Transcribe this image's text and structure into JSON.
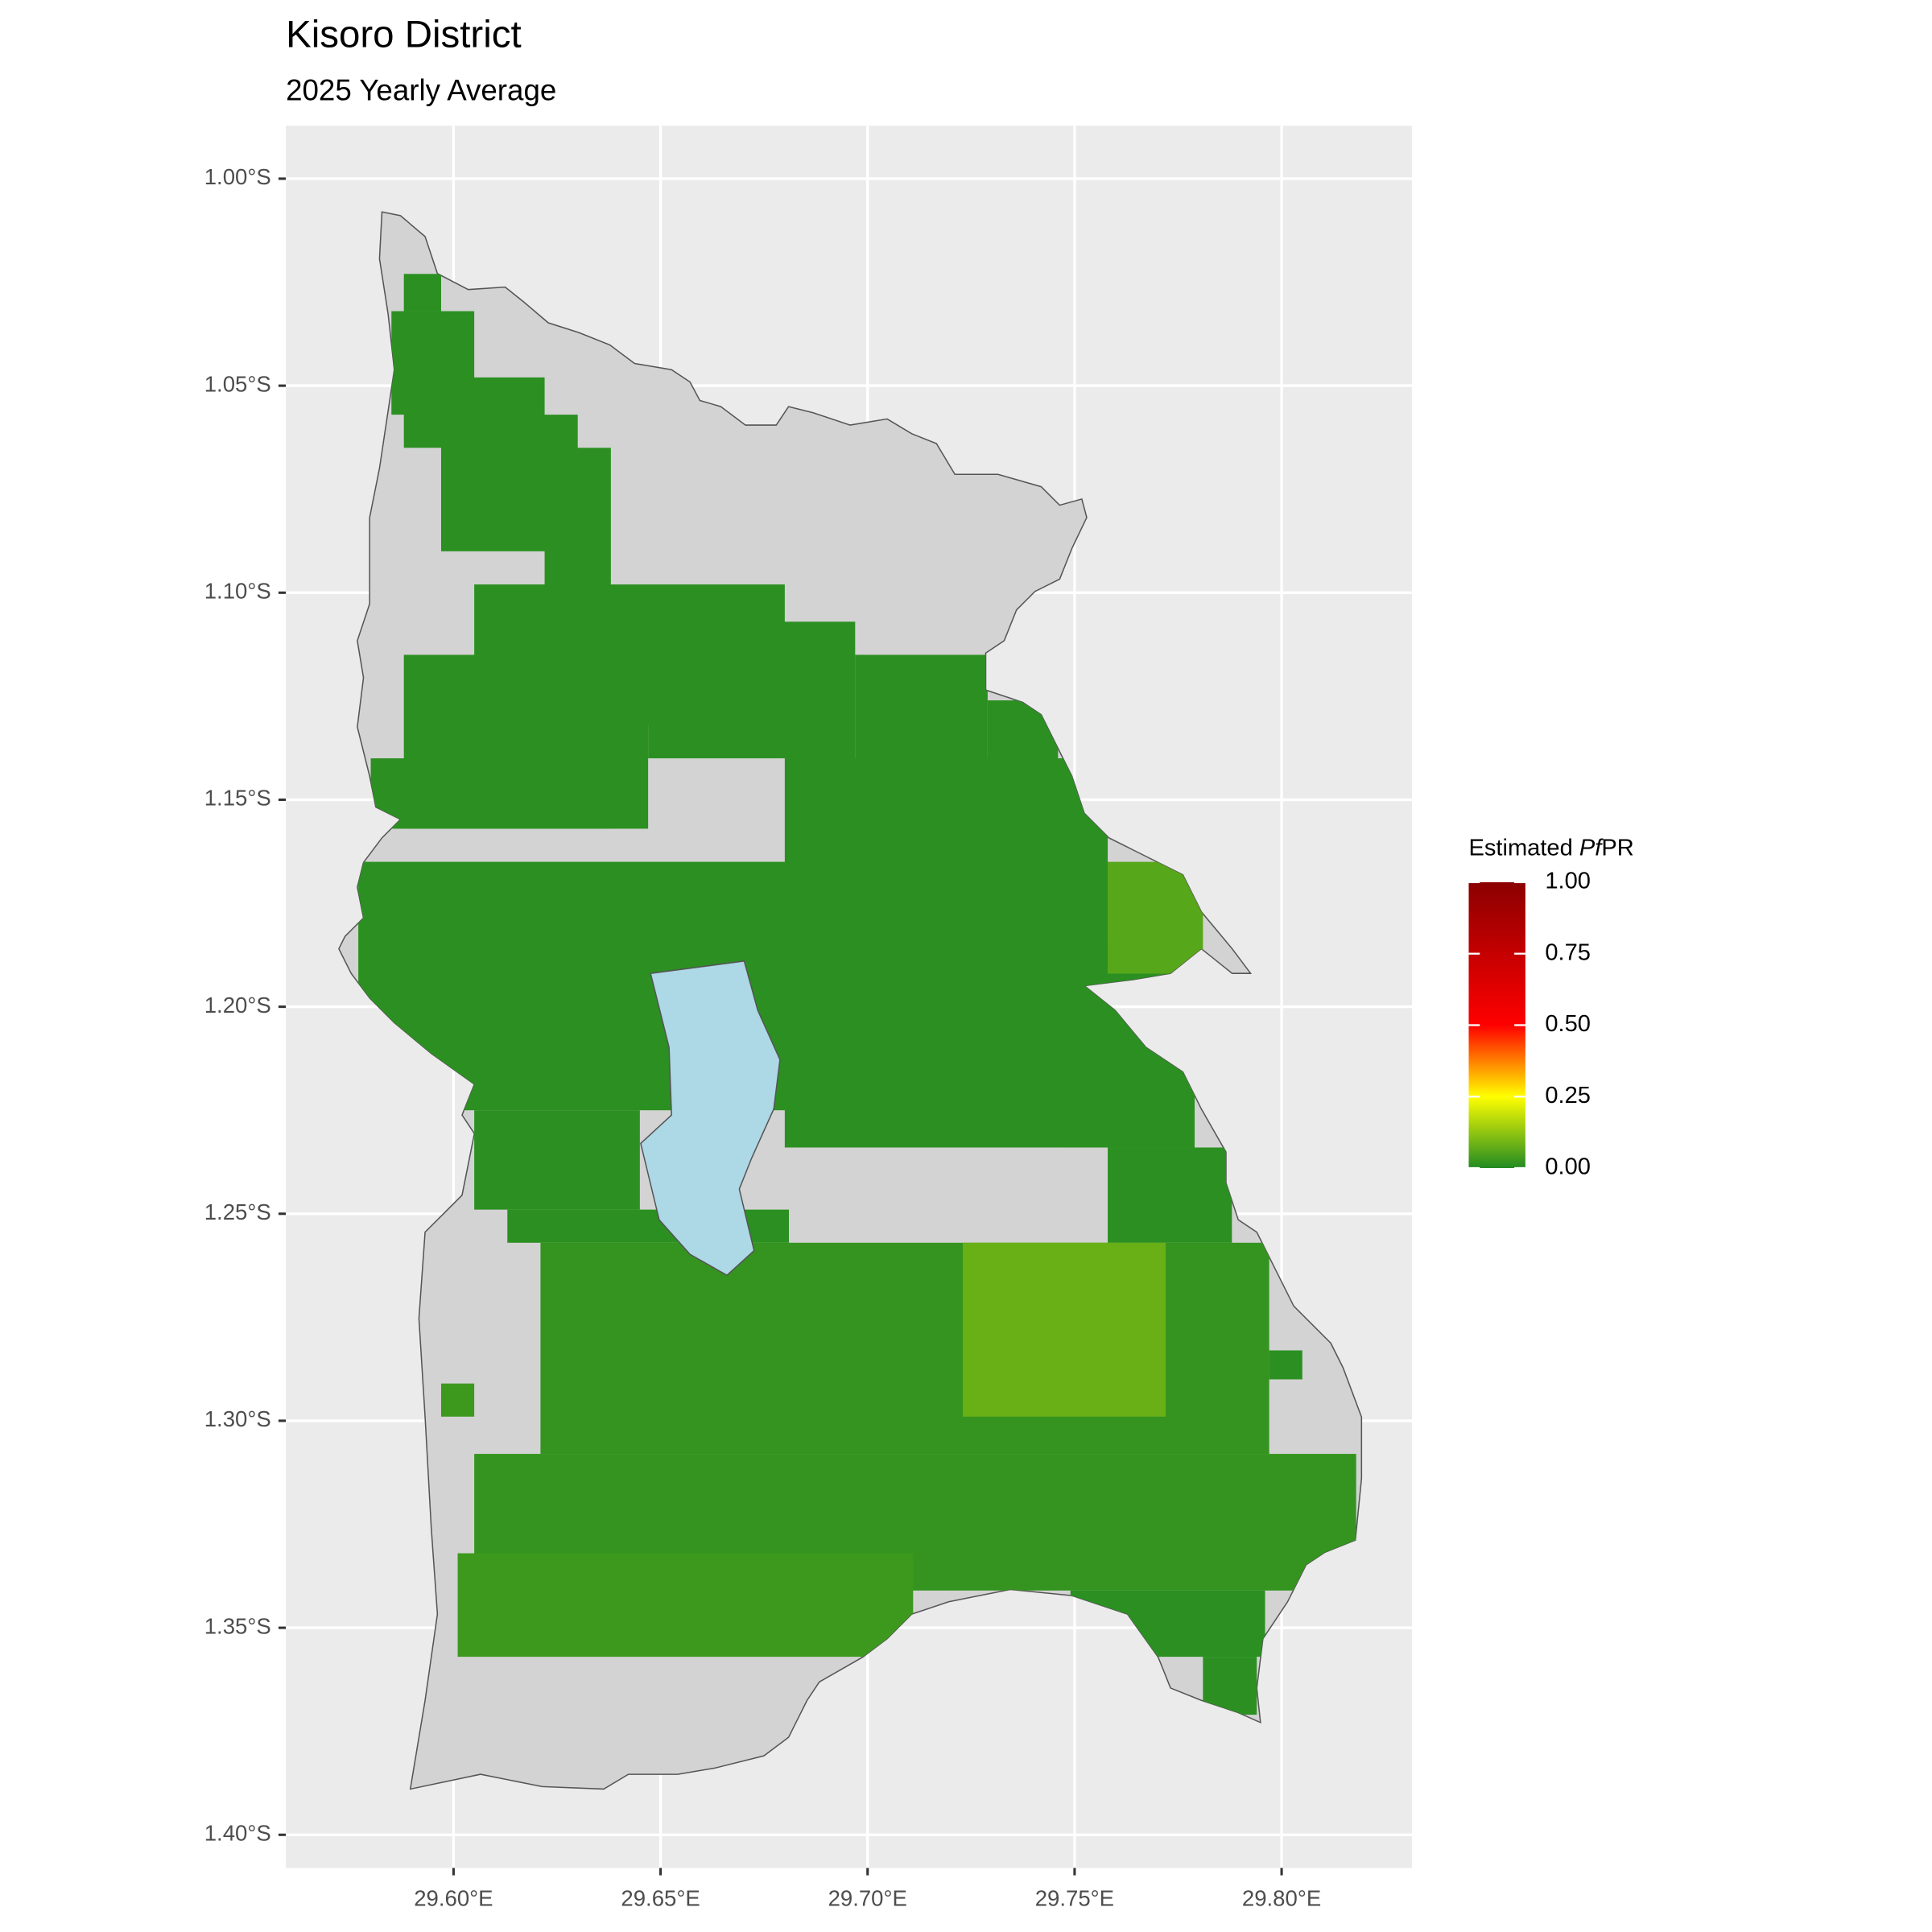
{
  "chart_data": {
    "type": "raster",
    "title": "Kisoro District",
    "subtitle": "2025 Yearly Average",
    "xlim": [
      29.5595,
      29.8315
    ],
    "ylim": [
      -1.408,
      -0.9872
    ],
    "xticks": [
      {
        "value": 29.6,
        "label": "29.60°E"
      },
      {
        "value": 29.65,
        "label": "29.65°E"
      },
      {
        "value": 29.7,
        "label": "29.70°E"
      },
      {
        "value": 29.75,
        "label": "29.75°E"
      },
      {
        "value": 29.8,
        "label": "29.80°E"
      }
    ],
    "yticks": [
      {
        "value": -1.0,
        "label": "1.00°S"
      },
      {
        "value": -1.05,
        "label": "1.05°S"
      },
      {
        "value": -1.1,
        "label": "1.10°S"
      },
      {
        "value": -1.15,
        "label": "1.15°S"
      },
      {
        "value": -1.2,
        "label": "1.20°S"
      },
      {
        "value": -1.25,
        "label": "1.25°S"
      },
      {
        "value": -1.3,
        "label": "1.30°S"
      },
      {
        "value": -1.35,
        "label": "1.35°S"
      },
      {
        "value": -1.4,
        "label": "1.40°S"
      }
    ],
    "grid": true,
    "legend": {
      "title": [
        "Estimated ",
        "Pf",
        "PR"
      ],
      "limits": [
        0,
        1
      ],
      "ticks": [
        {
          "value": 1,
          "label": "1.00"
        },
        {
          "value": 0.75,
          "label": "0.75"
        },
        {
          "value": 0.5,
          "label": "0.50"
        },
        {
          "value": 0.25,
          "label": "0.25"
        },
        {
          "value": 0,
          "label": "0.00"
        }
      ],
      "colors": [
        {
          "value": 0,
          "color": "#228B22"
        },
        {
          "value": 0.25,
          "color": "#FFFF00"
        },
        {
          "value": 0.5,
          "color": "#FF0000"
        },
        {
          "value": 1,
          "color": "#8B0000"
        }
      ]
    },
    "cells": [
      {
        "lon": [
          29.588,
          29.597
        ],
        "lat": [
          -1.023,
          -1.032
        ],
        "value": 0.01
      },
      {
        "lon": [
          29.585,
          29.605
        ],
        "lat": [
          -1.032,
          -1.057
        ],
        "value": 0.01
      },
      {
        "lon": [
          29.588,
          29.622
        ],
        "lat": [
          -1.048,
          -1.065
        ],
        "value": 0.01
      },
      {
        "lon": [
          29.597,
          29.63
        ],
        "lat": [
          -1.057,
          -1.09
        ],
        "value": 0.01
      },
      {
        "lon": [
          29.622,
          29.638
        ],
        "lat": [
          -1.065,
          -1.107
        ],
        "value": 0.01
      },
      {
        "lon": [
          29.588,
          29.647
        ],
        "lat": [
          -1.115,
          -1.157
        ],
        "value": 0.01
      },
      {
        "lon": [
          29.58,
          29.638
        ],
        "lat": [
          -1.14,
          -1.157
        ],
        "value": 0.01
      },
      {
        "lon": [
          29.605,
          29.68
        ],
        "lat": [
          -1.098,
          -1.132
        ],
        "value": 0.01
      },
      {
        "lon": [
          29.647,
          29.697
        ],
        "lat": [
          -1.107,
          -1.14
        ],
        "value": 0.01
      },
      {
        "lon": [
          29.697,
          29.729
        ],
        "lat": [
          -1.115,
          -1.165
        ],
        "value": 0.01
      },
      {
        "lon": [
          29.729,
          29.746
        ],
        "lat": [
          -1.126,
          -1.183
        ],
        "value": 0.01
      },
      {
        "lon": [
          29.577,
          29.681
        ],
        "lat": [
          -1.165,
          -1.225
        ],
        "value": 0.01
      },
      {
        "lon": [
          29.68,
          29.758
        ],
        "lat": [
          -1.14,
          -1.234
        ],
        "value": 0.01
      },
      {
        "lon": [
          29.746,
          29.779
        ],
        "lat": [
          -1.183,
          -1.234
        ],
        "value": 0.01
      },
      {
        "lon": [
          29.605,
          29.645
        ],
        "lat": [
          -1.225,
          -1.249
        ],
        "value": 0.01
      },
      {
        "lon": [
          29.613,
          29.681
        ],
        "lat": [
          -1.249,
          -1.257
        ],
        "value": 0.01
      },
      {
        "lon": [
          29.621,
          29.797
        ],
        "lat": [
          -1.257,
          -1.308
        ],
        "value": 0.02
      },
      {
        "lon": [
          29.758,
          29.788
        ],
        "lat": [
          -1.234,
          -1.257
        ],
        "value": 0.01
      },
      {
        "lon": [
          29.605,
          29.818
        ],
        "lat": [
          -1.308,
          -1.341
        ],
        "value": 0.02
      },
      {
        "lon": [
          29.601,
          29.711
        ],
        "lat": [
          -1.332,
          -1.357
        ],
        "value": 0.03
      },
      {
        "lon": [
          29.749,
          29.796
        ],
        "lat": [
          -1.341,
          -1.357
        ],
        "value": 0.01
      },
      {
        "lon": [
          29.781,
          29.794
        ],
        "lat": [
          -1.357,
          -1.371
        ],
        "value": 0.01
      },
      {
        "lon": [
          29.797,
          29.805
        ],
        "lat": [
          -1.283,
          -1.29
        ],
        "value": 0.01
      },
      {
        "lon": [
          29.597,
          29.605
        ],
        "lat": [
          -1.291,
          -1.299
        ],
        "value": 0.03
      },
      {
        "lon": [
          29.758,
          29.781
        ],
        "lat": [
          -1.165,
          -1.192
        ],
        "value": 0.06
      },
      {
        "lon": [
          29.723,
          29.772
        ],
        "lat": [
          -1.257,
          -1.299
        ],
        "value": 0.08
      }
    ]
  }
}
